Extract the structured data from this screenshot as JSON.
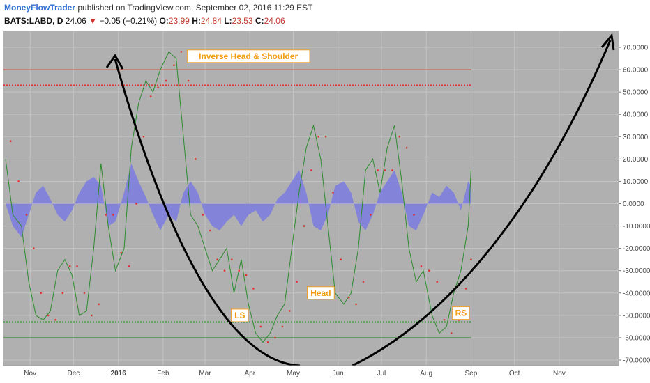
{
  "header": {
    "author": "MoneyFlowTrader",
    "published": "published on TradingView.com, September 02, 2016 11:29 EST",
    "symbol": "BATS:LABD, D",
    "price": "24.06",
    "change": "−0.05 (−0.21%)",
    "o_label": "O:",
    "o_value": "23.99",
    "h_label": "H:",
    "h_value": "24.84",
    "l_label": "L:",
    "l_value": "23.53",
    "c_label": "C:",
    "c_value": "24.06"
  },
  "colors": {
    "plot_bg": "#b0b0b0",
    "oscillator_line": "#2e8b2e",
    "signal_dots": "#e03030",
    "histogram_fill": "#7b7be0",
    "upper_bands": "#e03030",
    "lower_bands": "#2e8b2e",
    "arrows": "#000000",
    "annotation_text": "#f39c12"
  },
  "chart_data": {
    "type": "line",
    "y_axis": {
      "ylim": [
        -70,
        70
      ],
      "ticks": [
        70,
        60,
        50,
        40,
        30,
        20,
        10,
        0,
        -10,
        -20,
        -30,
        -40,
        -50,
        -60,
        -70
      ],
      "tick_labels": [
        "70.0000",
        "60.0000",
        "50.0000",
        "40.0000",
        "30.0000",
        "20.0000",
        "10.0000",
        "0.0000",
        "-10.0000",
        "-20.0000",
        "-30.0000",
        "-40.0000",
        "-50.0000",
        "-60.0000",
        "-70.0000"
      ]
    },
    "x_axis": {
      "tick_labels": [
        "Nov",
        "Dec",
        "2016",
        "Feb",
        "Mar",
        "Apr",
        "May",
        "Jun",
        "Jul",
        "Aug",
        "Sep",
        "Oct",
        "Nov"
      ],
      "tick_dates": [
        "2015-11-01",
        "2015-12-01",
        "2016-01-01",
        "2016-02-01",
        "2016-03-01",
        "2016-04-01",
        "2016-05-01",
        "2016-06-01",
        "2016-07-01",
        "2016-08-01",
        "2016-09-01",
        "2016-10-01",
        "2016-11-01"
      ]
    },
    "horizontal_levels": [
      {
        "value": 60,
        "style": "solid",
        "color": "#e03030"
      },
      {
        "value": 53,
        "style": "dotted",
        "color": "#e03030"
      },
      {
        "value": -53,
        "style": "dotted",
        "color": "#2e8b2e"
      },
      {
        "value": -60,
        "style": "solid",
        "color": "#2e8b2e"
      }
    ],
    "oscillator": {
      "dates": [
        "2015-10-15",
        "2015-10-20",
        "2015-10-26",
        "2015-10-31",
        "2015-11-05",
        "2015-11-10",
        "2015-11-15",
        "2015-11-20",
        "2015-11-25",
        "2015-11-30",
        "2015-12-05",
        "2015-12-10",
        "2015-12-15",
        "2015-12-20",
        "2015-12-25",
        "2015-12-30",
        "2016-01-05",
        "2016-01-10",
        "2016-01-15",
        "2016-01-20",
        "2016-01-25",
        "2016-01-30",
        "2016-02-05",
        "2016-02-10",
        "2016-02-15",
        "2016-02-20",
        "2016-02-25",
        "2016-03-01",
        "2016-03-06",
        "2016-03-11",
        "2016-03-16",
        "2016-03-21",
        "2016-03-26",
        "2016-03-31",
        "2016-04-05",
        "2016-04-10",
        "2016-04-15",
        "2016-04-20",
        "2016-04-25",
        "2016-04-30",
        "2016-05-05",
        "2016-05-10",
        "2016-05-15",
        "2016-05-20",
        "2016-05-25",
        "2016-05-30",
        "2016-06-05",
        "2016-06-10",
        "2016-06-15",
        "2016-06-20",
        "2016-06-25",
        "2016-06-30",
        "2016-07-05",
        "2016-07-10",
        "2016-07-15",
        "2016-07-20",
        "2016-07-25",
        "2016-07-30",
        "2016-08-05",
        "2016-08-10",
        "2016-08-15",
        "2016-08-20",
        "2016-08-25",
        "2016-08-30",
        "2016-09-01"
      ],
      "values": [
        20,
        -5,
        -10,
        -35,
        -50,
        -52,
        -48,
        -30,
        -25,
        -32,
        -50,
        -48,
        -20,
        18,
        -10,
        -30,
        -20,
        25,
        45,
        55,
        50,
        60,
        68,
        65,
        30,
        -5,
        -10,
        -20,
        -30,
        -25,
        -20,
        -40,
        -25,
        -45,
        -58,
        -62,
        -58,
        -50,
        -45,
        -20,
        5,
        25,
        35,
        20,
        -10,
        -40,
        -45,
        -40,
        -20,
        15,
        20,
        5,
        25,
        35,
        10,
        -20,
        -35,
        -30,
        -50,
        -58,
        -55,
        -40,
        -30,
        -10,
        15
      ],
      "color": "#2e8b2e"
    },
    "signal_dots": {
      "values": [
        28,
        10,
        -5,
        -20,
        -40,
        -50,
        -52,
        -40,
        -28,
        -28,
        -40,
        -50,
        -45,
        -5,
        -5,
        -22,
        -28,
        0,
        30,
        48,
        52,
        55,
        62,
        68,
        55,
        20,
        -5,
        -12,
        -25,
        -30,
        -25,
        -30,
        -32,
        -38,
        -55,
        -62,
        -60,
        -55,
        -48,
        -35,
        -10,
        15,
        30,
        30,
        5,
        -25,
        -42,
        -45,
        -35,
        -5,
        15,
        15,
        15,
        30,
        25,
        -5,
        -28,
        -30,
        -35,
        -52,
        -58,
        -52,
        -38,
        -25,
        0
      ],
      "color": "#e03030"
    },
    "histogram": {
      "values": [
        0,
        -10,
        -15,
        -5,
        5,
        8,
        2,
        -5,
        -8,
        -3,
        5,
        10,
        12,
        8,
        -10,
        -8,
        5,
        18,
        10,
        3,
        -5,
        -12,
        -5,
        -8,
        5,
        10,
        5,
        -5,
        -10,
        -12,
        -8,
        -5,
        -10,
        -5,
        -3,
        -8,
        -5,
        2,
        5,
        10,
        15,
        5,
        -10,
        -12,
        -5,
        8,
        10,
        5,
        -8,
        -12,
        -5,
        5,
        10,
        15,
        5,
        -10,
        -12,
        -5,
        5,
        3,
        8,
        5,
        -3,
        10,
        8
      ],
      "color": "#7b7be0"
    },
    "annotations": [
      {
        "label": "Inverse Head & Shoulder",
        "date": "2016-03-31",
        "value": 66
      },
      {
        "label": "LS",
        "date": "2016-03-25",
        "value": -50
      },
      {
        "label": "Head",
        "date": "2016-05-20",
        "value": -40
      },
      {
        "label": "RS",
        "date": "2016-08-25",
        "value": -49
      }
    ]
  }
}
